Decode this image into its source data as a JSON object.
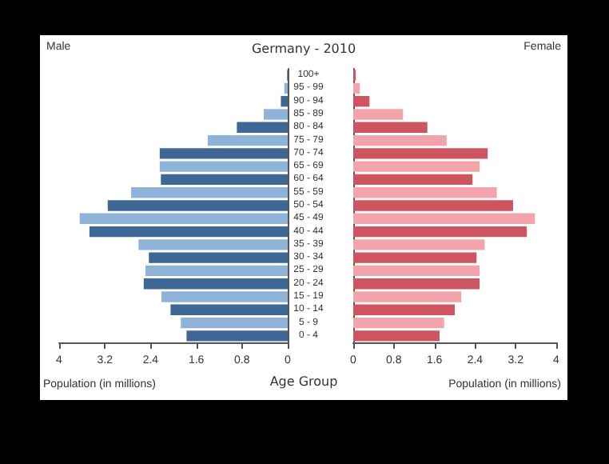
{
  "chart_data": [
    {
      "type": "bar",
      "orientation": "horizontal",
      "title": "Male",
      "annotations": [
        "Germany - 2010"
      ],
      "xlabel": "Population (in millions)",
      "ylabel": "Age Group",
      "categories": [
        "100+",
        "95 - 99",
        "90 - 94",
        "85 - 89",
        "80 - 84",
        "75 - 79",
        "70 - 74",
        "65 - 69",
        "60 - 64",
        "55 - 59",
        "50 - 54",
        "45 - 49",
        "40 - 44",
        "35 - 39",
        "30 - 34",
        "25 - 29",
        "20 - 24",
        "15 - 19",
        "10 - 14",
        "5 - 9",
        "0 - 4"
      ],
      "series": [
        {
          "values": [
            0.01,
            0.06,
            0.12,
            0.42,
            0.89,
            1.4,
            2.24,
            2.24,
            2.22,
            2.74,
            3.15,
            3.64,
            3.47,
            2.61,
            2.43,
            2.49,
            2.52,
            2.21,
            2.05,
            1.87,
            1.77
          ],
          "colors": [
            "#3f6796",
            "#8fb2d9",
            "#3f6796",
            "#8fb2d9",
            "#3f6796",
            "#8fb2d9",
            "#3f6796",
            "#8fb2d9",
            "#3f6796",
            "#8fb2d9",
            "#3f6796",
            "#8fb2d9",
            "#3f6796",
            "#8fb2d9",
            "#3f6796",
            "#8fb2d9",
            "#3f6796",
            "#8fb2d9",
            "#3f6796",
            "#8fb2d9",
            "#3f6796"
          ]
        }
      ],
      "xlim": [
        4,
        0
      ],
      "xticks": [
        4,
        3.2,
        2.4,
        1.6,
        0.8,
        0
      ],
      "grid": false
    },
    {
      "type": "bar",
      "orientation": "horizontal",
      "title": "Female",
      "xlabel": "Population (in millions)",
      "categories": [
        null,
        null,
        null,
        null,
        null,
        null,
        null,
        null,
        null,
        null,
        null,
        null,
        null,
        null,
        null,
        null,
        null,
        null,
        null,
        null,
        null
      ],
      "series": [
        {
          "values": [
            0.05,
            0.13,
            0.32,
            0.98,
            1.46,
            1.84,
            2.65,
            2.49,
            2.35,
            2.83,
            3.15,
            3.58,
            3.42,
            2.59,
            2.43,
            2.49,
            2.49,
            2.13,
            2.0,
            1.79,
            1.7
          ],
          "colors": [
            "#cc5560",
            "#f2a4aa",
            "#cc5560",
            "#f2a4aa",
            "#cc5560",
            "#f2a4aa",
            "#cc5560",
            "#f2a4aa",
            "#cc5560",
            "#f2a4aa",
            "#cc5560",
            "#f2a4aa",
            "#cc5560",
            "#f2a4aa",
            "#cc5560",
            "#f2a4aa",
            "#cc5560",
            "#f2a4aa",
            "#cc5560",
            "#f2a4aa",
            "#cc5560"
          ]
        }
      ],
      "xlim": [
        0,
        4
      ],
      "xticks": [
        0,
        0.8,
        1.6,
        2.4,
        3.2,
        4
      ],
      "grid": false
    }
  ]
}
